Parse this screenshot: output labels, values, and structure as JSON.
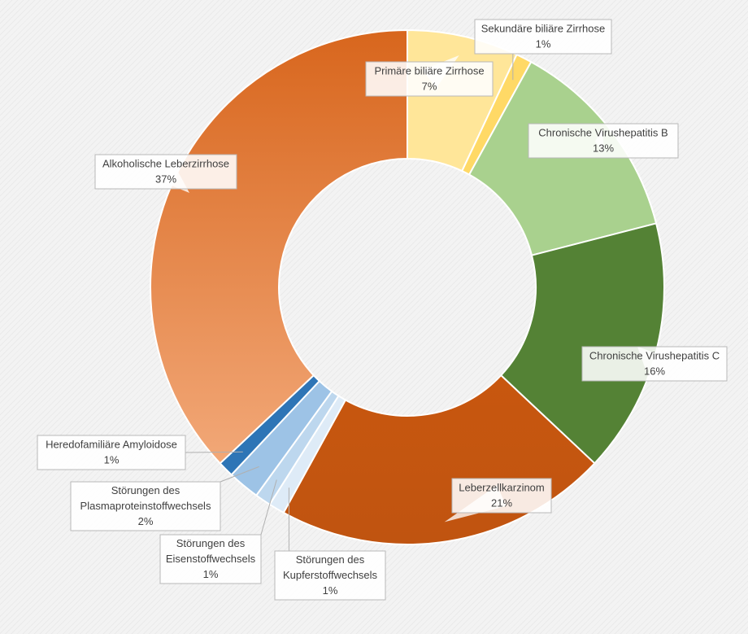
{
  "chart_data": {
    "type": "pie",
    "donut": true,
    "start_angle_deg": 0,
    "direction": "clockwise",
    "slices": [
      {
        "label": "Primäre biliäre Zirrhose",
        "percent_label": "7%",
        "value": 7,
        "color": "#FFE699"
      },
      {
        "label": "Sekundäre biliäre Zirrhose",
        "percent_label": "1%",
        "value": 1,
        "color": "#FFD966"
      },
      {
        "label": "Chronische Virushepatitis B",
        "percent_label": "13%",
        "value": 13,
        "color": "#A9D18E"
      },
      {
        "label": "Chronische Virushepatitis C",
        "percent_label": "16%",
        "value": 16,
        "color": "#548235"
      },
      {
        "label": "Leberzellkarzinom",
        "percent_label": "21%",
        "value": 21,
        "color": "#C55A11"
      },
      {
        "label": "Störungen des Kupferstoffwechsels",
        "percent_label": "1%",
        "value": 1,
        "color": "#DEEBF7"
      },
      {
        "label": "Störungen des Eisenstoffwechsels",
        "percent_label": "1%",
        "value": 1,
        "color": "#BDD7EE"
      },
      {
        "label": "Störungen des Plasmaproteinstoffwechsels",
        "percent_label": "2%",
        "value": 2,
        "color": "#9DC3E6"
      },
      {
        "label": "Heredofamiliäre Amyloidose",
        "percent_label": "1%",
        "value": 1,
        "color": "#2E75B6"
      },
      {
        "label": "Alkoholische Leberzirrhose",
        "percent_label": "37%",
        "value": 37,
        "color": "#E07B39"
      }
    ]
  }
}
